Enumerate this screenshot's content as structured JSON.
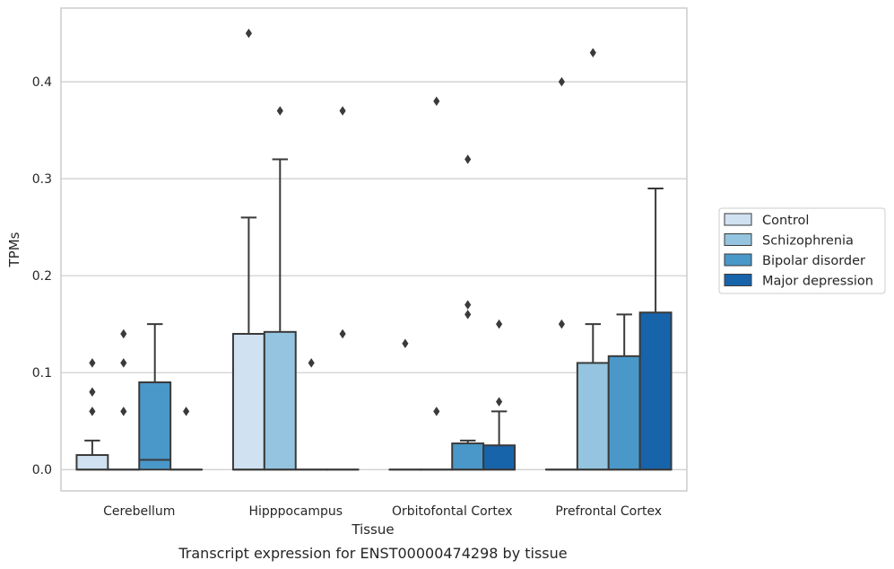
{
  "chart_data": {
    "type": "box",
    "title": "",
    "caption": "Transcript expression for ENST00000474298 by tissue",
    "xlabel": "Tissue",
    "ylabel": "TPMs",
    "ylim": [
      -0.022,
      0.476
    ],
    "yticks": [
      0.0,
      0.1,
      0.2,
      0.3,
      0.4
    ],
    "ytick_labels": [
      "0.0",
      "0.1",
      "0.2",
      "0.3",
      "0.4"
    ],
    "grid": "horizontal",
    "legend_position": "right",
    "categories": [
      "Cerebellum",
      "Hipppocampus",
      "Orbitofontal Cortex",
      "Prefrontal Cortex"
    ],
    "series": [
      {
        "name": "Control",
        "color": "#d0e1f2",
        "boxes": [
          {
            "q1": 0.0,
            "median": 0.0,
            "q3": 0.015,
            "whisker_low": 0.0,
            "whisker_high": 0.03,
            "outliers": [
              0.06,
              0.08,
              0.11
            ]
          },
          {
            "q1": 0.0,
            "median": 0.0,
            "q3": 0.14,
            "whisker_low": 0.0,
            "whisker_high": 0.26,
            "outliers": [
              0.45
            ]
          },
          {
            "q1": 0.0,
            "median": 0.0,
            "q3": 0.0,
            "whisker_low": 0.0,
            "whisker_high": 0.0,
            "outliers": [
              0.13
            ]
          },
          {
            "q1": 0.0,
            "median": 0.0,
            "q3": 0.0,
            "whisker_low": 0.0,
            "whisker_high": 0.0,
            "outliers": [
              0.15,
              0.4
            ]
          }
        ]
      },
      {
        "name": "Schizophrenia",
        "color": "#94c4df",
        "boxes": [
          {
            "q1": 0.0,
            "median": 0.0,
            "q3": 0.0,
            "whisker_low": 0.0,
            "whisker_high": 0.0,
            "outliers": [
              0.06,
              0.11,
              0.14
            ]
          },
          {
            "q1": 0.0,
            "median": 0.0,
            "q3": 0.142,
            "whisker_low": 0.0,
            "whisker_high": 0.32,
            "outliers": [
              0.37
            ]
          },
          {
            "q1": 0.0,
            "median": 0.0,
            "q3": 0.0,
            "whisker_low": 0.0,
            "whisker_high": 0.0,
            "outliers": [
              0.06,
              0.38
            ]
          },
          {
            "q1": 0.0,
            "median": 0.0,
            "q3": 0.11,
            "whisker_low": 0.0,
            "whisker_high": 0.15,
            "outliers": [
              0.43
            ]
          }
        ]
      },
      {
        "name": "Bipolar disorder",
        "color": "#4a98c9",
        "boxes": [
          {
            "q1": 0.0,
            "median": 0.01,
            "q3": 0.09,
            "whisker_low": 0.0,
            "whisker_high": 0.15,
            "outliers": []
          },
          {
            "q1": 0.0,
            "median": 0.0,
            "q3": 0.0,
            "whisker_low": 0.0,
            "whisker_high": 0.0,
            "outliers": [
              0.11
            ]
          },
          {
            "q1": 0.0,
            "median": 0.0,
            "q3": 0.027,
            "whisker_low": 0.0,
            "whisker_high": 0.03,
            "outliers": [
              0.16,
              0.17,
              0.32
            ]
          },
          {
            "q1": 0.0,
            "median": 0.0,
            "q3": 0.117,
            "whisker_low": 0.0,
            "whisker_high": 0.16,
            "outliers": []
          }
        ]
      },
      {
        "name": "Major depression",
        "color": "#1764ab",
        "boxes": [
          {
            "q1": 0.0,
            "median": 0.0,
            "q3": 0.0,
            "whisker_low": 0.0,
            "whisker_high": 0.0,
            "outliers": [
              0.06
            ]
          },
          {
            "q1": 0.0,
            "median": 0.0,
            "q3": 0.0,
            "whisker_low": 0.0,
            "whisker_high": 0.0,
            "outliers": [
              0.14,
              0.37
            ]
          },
          {
            "q1": 0.0,
            "median": 0.0,
            "q3": 0.025,
            "whisker_low": 0.0,
            "whisker_high": 0.06,
            "outliers": [
              0.07,
              0.15
            ]
          },
          {
            "q1": 0.0,
            "median": 0.0,
            "q3": 0.162,
            "whisker_low": 0.0,
            "whisker_high": 0.29,
            "outliers": []
          }
        ]
      }
    ]
  }
}
